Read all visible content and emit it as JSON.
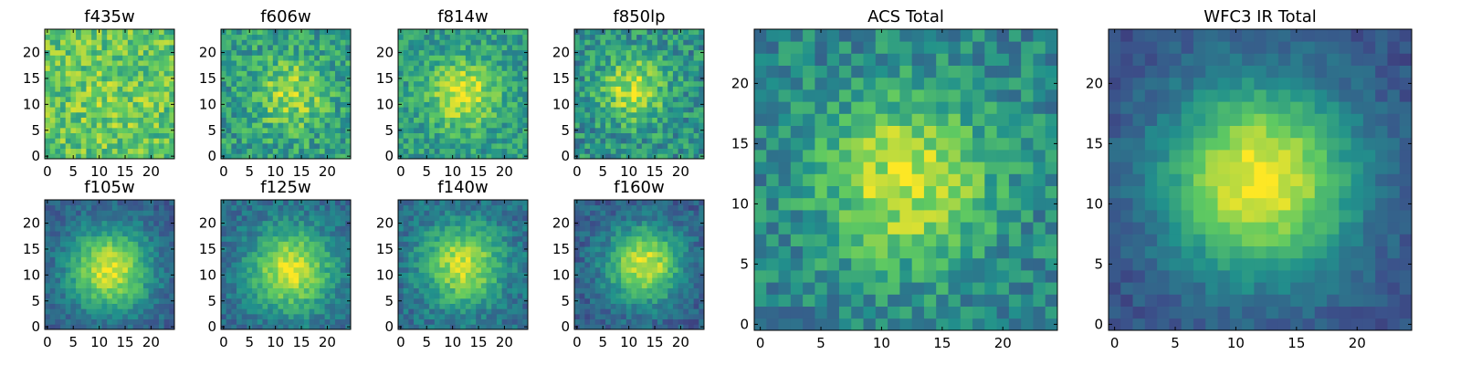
{
  "colormap": {
    "name": "viridis",
    "stops": [
      "#440154",
      "#3b528b",
      "#21918c",
      "#5ec962",
      "#fde725"
    ]
  },
  "chart_data": [
    {
      "type": "heatmap",
      "title": "f435w",
      "grid_size": 25,
      "xlim": [
        0,
        24
      ],
      "ylim": [
        0,
        24
      ],
      "xticks": [
        "0",
        "5",
        "10",
        "15",
        "20"
      ],
      "yticks": [
        "0",
        "5",
        "10",
        "15",
        "20"
      ],
      "peak": [
        12,
        11
      ],
      "sigma": 6,
      "peak_level": 0.78,
      "background_level": 0.72,
      "noise": 0.38,
      "seed": 11
    },
    {
      "type": "heatmap",
      "title": "f606w",
      "grid_size": 25,
      "xlim": [
        0,
        24
      ],
      "ylim": [
        0,
        24
      ],
      "xticks": [
        "0",
        "5",
        "10",
        "15",
        "20"
      ],
      "yticks": [
        "0",
        "5",
        "10",
        "15",
        "20"
      ],
      "peak": [
        13,
        12
      ],
      "sigma": 5,
      "peak_level": 0.85,
      "background_level": 0.55,
      "noise": 0.38,
      "seed": 23
    },
    {
      "type": "heatmap",
      "title": "f814w",
      "grid_size": 25,
      "xlim": [
        0,
        24
      ],
      "ylim": [
        0,
        24
      ],
      "xticks": [
        "0",
        "5",
        "10",
        "15",
        "20"
      ],
      "yticks": [
        "0",
        "5",
        "10",
        "15",
        "20"
      ],
      "peak": [
        12,
        12
      ],
      "sigma": 4.5,
      "peak_level": 0.95,
      "background_level": 0.55,
      "noise": 0.32,
      "seed": 37
    },
    {
      "type": "heatmap",
      "title": "f850lp",
      "grid_size": 25,
      "xlim": [
        0,
        24
      ],
      "ylim": [
        0,
        24
      ],
      "xticks": [
        "0",
        "5",
        "10",
        "15",
        "20"
      ],
      "yticks": [
        "0",
        "5",
        "10",
        "15",
        "20"
      ],
      "peak": [
        11,
        13
      ],
      "sigma": 4.5,
      "peak_level": 0.9,
      "background_level": 0.5,
      "noise": 0.38,
      "seed": 41
    },
    {
      "type": "heatmap",
      "title": "f105w",
      "grid_size": 25,
      "xlim": [
        0,
        24
      ],
      "ylim": [
        0,
        24
      ],
      "xticks": [
        "0",
        "5",
        "10",
        "15",
        "20"
      ],
      "yticks": [
        "0",
        "5",
        "10",
        "15",
        "20"
      ],
      "peak": [
        12,
        11
      ],
      "sigma": 5.5,
      "peak_level": 0.95,
      "background_level": 0.3,
      "noise": 0.2,
      "seed": 53
    },
    {
      "type": "heatmap",
      "title": "f125w",
      "grid_size": 25,
      "xlim": [
        0,
        24
      ],
      "ylim": [
        0,
        24
      ],
      "xticks": [
        "0",
        "5",
        "10",
        "15",
        "20"
      ],
      "yticks": [
        "0",
        "5",
        "10",
        "15",
        "20"
      ],
      "peak": [
        13,
        11
      ],
      "sigma": 5.5,
      "peak_level": 0.95,
      "background_level": 0.35,
      "noise": 0.22,
      "seed": 67
    },
    {
      "type": "heatmap",
      "title": "f140w",
      "grid_size": 25,
      "xlim": [
        0,
        24
      ],
      "ylim": [
        0,
        24
      ],
      "xticks": [
        "0",
        "5",
        "10",
        "15",
        "20"
      ],
      "yticks": [
        "0",
        "5",
        "10",
        "15",
        "20"
      ],
      "peak": [
        12,
        12
      ],
      "sigma": 5.5,
      "peak_level": 0.92,
      "background_level": 0.35,
      "noise": 0.24,
      "seed": 71
    },
    {
      "type": "heatmap",
      "title": "f160w",
      "grid_size": 25,
      "xlim": [
        0,
        24
      ],
      "ylim": [
        0,
        24
      ],
      "xticks": [
        "0",
        "5",
        "10",
        "15",
        "20"
      ],
      "yticks": [
        "0",
        "5",
        "10",
        "15",
        "20"
      ],
      "peak": [
        13,
        12
      ],
      "sigma": 5,
      "peak_level": 0.95,
      "background_level": 0.3,
      "noise": 0.22,
      "seed": 83
    },
    {
      "type": "heatmap",
      "title": "ACS Total",
      "grid_size": 25,
      "xlim": [
        0,
        24
      ],
      "ylim": [
        0,
        24
      ],
      "xticks": [
        "0",
        "5",
        "10",
        "15",
        "20"
      ],
      "yticks": [
        "0",
        "5",
        "10",
        "15",
        "20"
      ],
      "peak": [
        12,
        12
      ],
      "sigma": 5,
      "peak_level": 0.92,
      "background_level": 0.45,
      "noise": 0.32,
      "seed": 97
    },
    {
      "type": "heatmap",
      "title": "WFC3 IR Total",
      "grid_size": 25,
      "xlim": [
        0,
        24
      ],
      "ylim": [
        0,
        24
      ],
      "xticks": [
        "0",
        "5",
        "10",
        "15",
        "20"
      ],
      "yticks": [
        "0",
        "5",
        "10",
        "15",
        "20"
      ],
      "peak": [
        12,
        12
      ],
      "sigma": 5.5,
      "peak_level": 1.0,
      "background_level": 0.25,
      "noise": 0.14,
      "seed": 101
    }
  ]
}
